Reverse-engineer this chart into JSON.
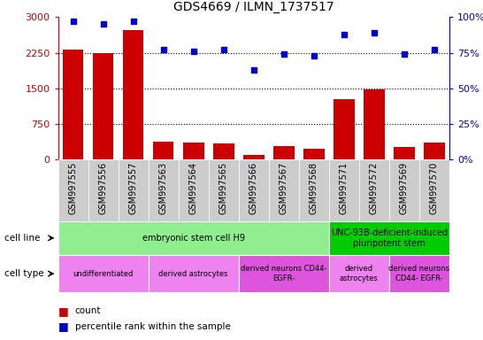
{
  "title": "GDS4669 / ILMN_1737517",
  "samples": [
    "GSM997555",
    "GSM997556",
    "GSM997557",
    "GSM997563",
    "GSM997564",
    "GSM997565",
    "GSM997566",
    "GSM997567",
    "GSM997568",
    "GSM997571",
    "GSM997572",
    "GSM997569",
    "GSM997570"
  ],
  "counts": [
    2320,
    2250,
    2730,
    390,
    365,
    350,
    110,
    280,
    230,
    1270,
    1480,
    270,
    360
  ],
  "percentiles": [
    97,
    95,
    97,
    77,
    76,
    77,
    63,
    74,
    73,
    88,
    89,
    74,
    77
  ],
  "ylim_left": [
    0,
    3000
  ],
  "ylim_right": [
    0,
    100
  ],
  "yticks_left": [
    0,
    750,
    1500,
    2250,
    3000
  ],
  "yticks_right": [
    0,
    25,
    50,
    75,
    100
  ],
  "bar_color": "#cc0000",
  "dot_color": "#0000cc",
  "cell_line_groups": [
    {
      "label": "embryonic stem cell H9",
      "start": 0,
      "end": 9,
      "color": "#90ee90"
    },
    {
      "label": "UNC-93B-deficient-induced\npluripotent stem",
      "start": 9,
      "end": 13,
      "color": "#00cc00"
    }
  ],
  "cell_type_groups": [
    {
      "label": "undifferentiated",
      "start": 0,
      "end": 3,
      "color": "#ee82ee"
    },
    {
      "label": "derived astrocytes",
      "start": 3,
      "end": 6,
      "color": "#ee82ee"
    },
    {
      "label": "derived neurons CD44-\nEGFR-",
      "start": 6,
      "end": 9,
      "color": "#dd55dd"
    },
    {
      "label": "derived\nastrocytes",
      "start": 9,
      "end": 11,
      "color": "#ee82ee"
    },
    {
      "label": "derived neurons\nCD44- EGFR-",
      "start": 11,
      "end": 13,
      "color": "#dd55dd"
    }
  ],
  "left_axis_color": "#cc0000",
  "right_axis_color": "#0000cc",
  "xtick_bg_color": "#cccccc"
}
